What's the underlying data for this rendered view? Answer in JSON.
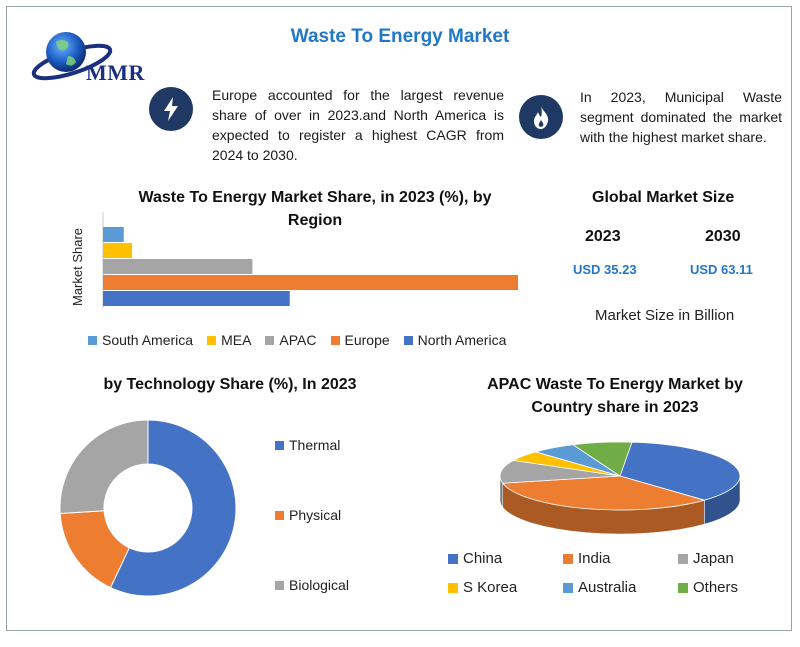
{
  "header": {
    "title": "Waste To Energy Market",
    "logo_text": "MMR"
  },
  "info": {
    "left_text": "Europe accounted for the largest revenue share of over in 2023.and North America is expected to register a highest CAGR from 2024 to 2030.",
    "left_icon": "lightning-bolt-icon",
    "right_text": "In 2023, Municipal Waste segment dominated the market with the highest market share.",
    "right_icon": "flame-icon"
  },
  "global_market": {
    "title": "Global Market Size",
    "year1": "2023",
    "year2": "2030",
    "value1": "USD 35.23",
    "value2": "USD 63.11",
    "note": "Market Size in Billion"
  },
  "colors": {
    "blue": "#4472c4",
    "orange": "#ed7d31",
    "gray": "#a5a5a5",
    "yellow": "#ffc000",
    "light_blue": "#5b9bd5",
    "green": "#70ad47",
    "navy": "#1f3864",
    "accent": "#2277c8"
  },
  "chart_data": [
    {
      "type": "bar",
      "orientation": "horizontal",
      "title": "Waste To Energy Market Share, in 2023 (%), by Region",
      "ylabel": "Market Share",
      "categories": [
        "South America",
        "MEA",
        "APAC",
        "Europe",
        "North America"
      ],
      "values": [
        5,
        7,
        36,
        100,
        45
      ],
      "colors": [
        "#5b9bd5",
        "#ffc000",
        "#a5a5a5",
        "#ed7d31",
        "#4472c4"
      ],
      "legend": [
        "South America",
        "MEA",
        "APAC",
        "Europe",
        "North America"
      ],
      "legend_position": "bottom"
    },
    {
      "type": "pie",
      "variant": "donut",
      "title": "by Technology Share (%), In 2023",
      "labels": [
        "Thermal",
        "Physical",
        "Biological"
      ],
      "values": [
        57,
        17,
        26
      ],
      "colors": [
        "#4472c4",
        "#ed7d31",
        "#a5a5a5"
      ],
      "legend_position": "right"
    },
    {
      "type": "pie",
      "variant": "3d",
      "title": "APAC Waste To Energy Market by Country share in 2023",
      "labels": [
        "China",
        "India",
        "Japan",
        "S Korea",
        "Australia",
        "Others"
      ],
      "values": [
        36,
        34,
        11,
        5,
        6,
        8
      ],
      "colors": [
        "#4472c4",
        "#ed7d31",
        "#a5a5a5",
        "#ffc000",
        "#5b9bd5",
        "#70ad47"
      ],
      "legend_position": "bottom"
    }
  ]
}
